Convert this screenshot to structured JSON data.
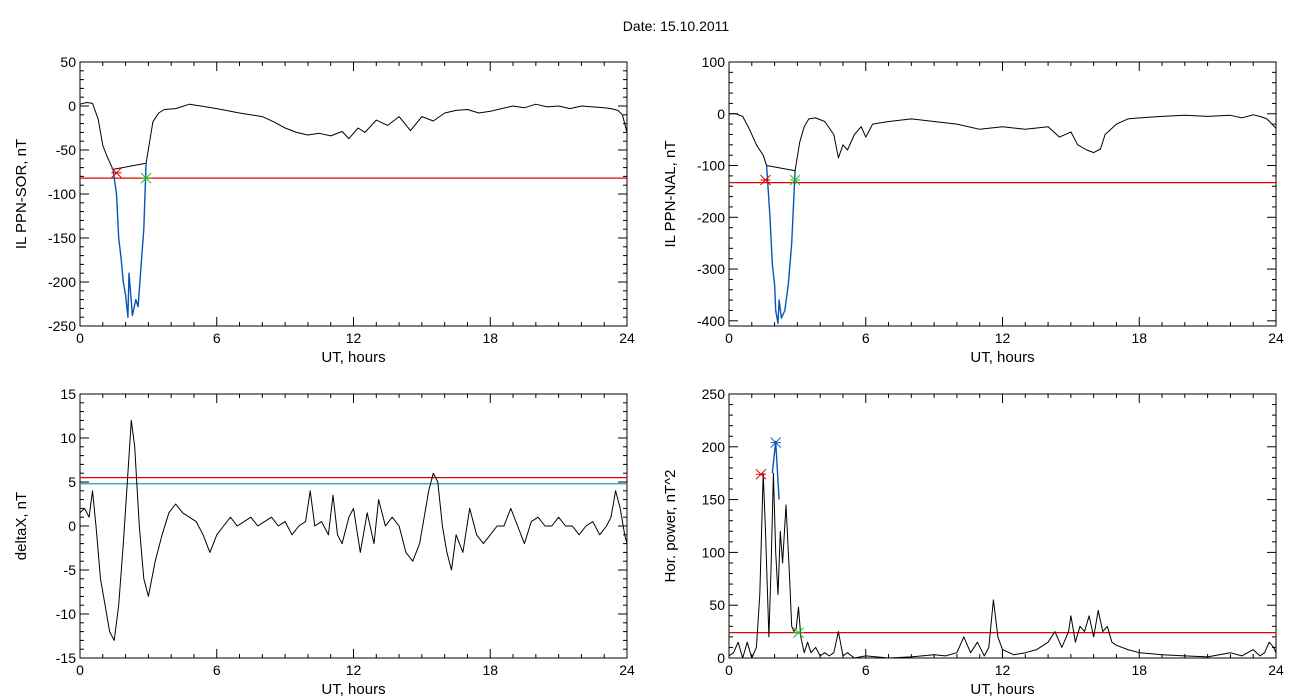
{
  "header": {
    "date_label": "Date:  15.10.2011"
  },
  "colors": {
    "red": "#e60000",
    "blue": "#0a55b4",
    "green": "#22bb22",
    "black": "#000000",
    "teal": "#2a9a9a"
  },
  "chart_data": [
    {
      "id": "p1",
      "type": "line",
      "xlabel": "UT, hours",
      "ylabel": "IL PPN-SOR, nT",
      "xlim": [
        0,
        24
      ],
      "ylim": [
        -250,
        50
      ],
      "xticks": [
        0,
        6,
        12,
        18,
        24
      ],
      "yticks": [
        -250,
        -200,
        -150,
        -100,
        -50,
        0,
        50
      ],
      "grid": false,
      "series": [
        {
          "color": "#000000",
          "x": [
            0,
            0.3,
            0.55,
            0.8,
            1.0,
            1.2,
            1.45,
            2.9,
            3.2,
            3.45,
            3.7,
            4.2,
            4.8,
            5.3,
            6.0,
            7.0,
            8.0,
            8.5,
            9.0,
            9.5,
            10.0,
            10.5,
            11.0,
            11.5,
            11.8,
            12.2,
            12.5,
            13.0,
            13.5,
            14.0,
            14.5,
            15.0,
            15.5,
            16.0,
            16.5,
            17.0,
            17.5,
            18.0,
            18.5,
            19.0,
            19.5,
            20.0,
            20.5,
            21.0,
            21.5,
            22.0,
            22.5,
            23.0,
            23.3,
            23.6,
            23.8,
            24.0
          ],
          "y": [
            2,
            4,
            3,
            -15,
            -45,
            -58,
            -72,
            -65,
            -18,
            -8,
            -4,
            -3,
            2,
            0,
            -3,
            -8,
            -12,
            -18,
            -25,
            -30,
            -33,
            -31,
            -34,
            -29,
            -37,
            -25,
            -30,
            -16,
            -22,
            -12,
            -28,
            -12,
            -17,
            -8,
            -5,
            -4,
            -8,
            -6,
            -3,
            0,
            -2,
            2,
            -1,
            0,
            -3,
            0,
            -1,
            -2,
            -3,
            -5,
            -10,
            -30
          ]
        },
        {
          "color": "#0a55b4",
          "x": [
            1.45,
            1.6,
            1.7,
            1.8,
            1.9,
            2.0,
            2.1,
            2.15,
            2.3,
            2.45,
            2.55,
            2.7,
            2.8,
            2.9
          ],
          "y": [
            -72,
            -100,
            -150,
            -172,
            -200,
            -215,
            -240,
            -190,
            -238,
            -220,
            -228,
            -175,
            -140,
            -65
          ]
        }
      ],
      "hlines": [
        {
          "y": -82,
          "color": "#e60000"
        }
      ],
      "markers": [
        {
          "x": 1.6,
          "y": -76,
          "color": "#e60000"
        },
        {
          "x": 2.9,
          "y": -82,
          "color": "#22bb22"
        }
      ]
    },
    {
      "id": "p2",
      "type": "line",
      "xlabel": "UT, hours",
      "ylabel": "IL PPN-NAL, nT",
      "xlim": [
        0,
        24
      ],
      "ylim": [
        -410,
        100
      ],
      "xticks": [
        0,
        6,
        12,
        18,
        24
      ],
      "yticks": [
        -400,
        -300,
        -200,
        -100,
        0,
        100
      ],
      "grid": false,
      "series": [
        {
          "color": "#000000",
          "x": [
            0,
            0.3,
            0.6,
            0.9,
            1.2,
            1.5,
            1.65,
            2.9,
            3.1,
            3.3,
            3.5,
            3.8,
            4.2,
            4.6,
            4.8,
            5.0,
            5.2,
            5.5,
            5.8,
            6.0,
            6.3,
            7.0,
            8.0,
            9.0,
            10.0,
            11.0,
            12.0,
            13.0,
            14.0,
            14.5,
            15.0,
            15.3,
            15.7,
            16.0,
            16.3,
            16.5,
            17.0,
            17.5,
            18.0,
            19.0,
            20.0,
            21.0,
            22.0,
            22.5,
            23.0,
            23.3,
            23.6,
            24.0
          ],
          "y": [
            0,
            0,
            -5,
            -30,
            -60,
            -80,
            -100,
            -110,
            -55,
            -25,
            -10,
            -8,
            -15,
            -40,
            -85,
            -60,
            -70,
            -40,
            -25,
            -45,
            -20,
            -15,
            -10,
            -15,
            -20,
            -30,
            -25,
            -30,
            -25,
            -45,
            -35,
            -60,
            -70,
            -75,
            -68,
            -40,
            -20,
            -10,
            -8,
            -5,
            -3,
            -5,
            -3,
            -8,
            -2,
            -5,
            -10,
            -28
          ]
        },
        {
          "color": "#0a55b4",
          "x": [
            1.65,
            1.8,
            1.9,
            2.0,
            2.05,
            2.15,
            2.2,
            2.3,
            2.45,
            2.6,
            2.75,
            2.9
          ],
          "y": [
            -100,
            -200,
            -290,
            -330,
            -380,
            -405,
            -360,
            -395,
            -380,
            -330,
            -250,
            -110
          ]
        }
      ],
      "hlines": [
        {
          "y": -133,
          "color": "#e60000"
        }
      ],
      "markers": [
        {
          "x": 1.6,
          "y": -128,
          "color": "#e60000"
        },
        {
          "x": 2.9,
          "y": -128,
          "color": "#22bb22"
        }
      ]
    },
    {
      "id": "p3",
      "type": "line",
      "xlabel": "UT, hours",
      "ylabel": "deltaX, nT",
      "xlim": [
        0,
        24
      ],
      "ylim": [
        -15,
        15
      ],
      "xticks": [
        0,
        6,
        12,
        18,
        24
      ],
      "yticks": [
        -15,
        -10,
        -5,
        0,
        5,
        10,
        15
      ],
      "grid": false,
      "series": [
        {
          "color": "#000000",
          "x": [
            0,
            0.2,
            0.4,
            0.55,
            0.7,
            0.9,
            1.1,
            1.3,
            1.5,
            1.7,
            1.9,
            2.1,
            2.25,
            2.4,
            2.6,
            2.8,
            3.0,
            3.3,
            3.6,
            3.9,
            4.2,
            4.5,
            4.8,
            5.1,
            5.4,
            5.7,
            6.0,
            6.3,
            6.6,
            6.9,
            7.2,
            7.5,
            7.8,
            8.1,
            8.4,
            8.7,
            9.0,
            9.3,
            9.6,
            9.9,
            10.1,
            10.3,
            10.6,
            10.9,
            11.1,
            11.3,
            11.5,
            11.8,
            12.0,
            12.3,
            12.6,
            12.9,
            13.1,
            13.4,
            13.7,
            14.0,
            14.3,
            14.6,
            14.9,
            15.1,
            15.3,
            15.5,
            15.7,
            15.9,
            16.1,
            16.3,
            16.5,
            16.8,
            17.1,
            17.4,
            17.7,
            18.0,
            18.3,
            18.6,
            18.9,
            19.2,
            19.5,
            19.8,
            20.1,
            20.4,
            20.7,
            21.0,
            21.3,
            21.6,
            21.9,
            22.2,
            22.5,
            22.8,
            23.1,
            23.3,
            23.5,
            23.7,
            23.9,
            24.0
          ],
          "y": [
            1.5,
            2,
            1,
            4,
            0,
            -6,
            -9,
            -12,
            -13,
            -9,
            -2,
            6,
            12,
            9,
            0,
            -6,
            -8,
            -4,
            -1,
            1.5,
            2.5,
            1.5,
            1,
            0.5,
            -1,
            -3,
            -1,
            0,
            1,
            0,
            0.5,
            1,
            0,
            0.5,
            1,
            0,
            0.5,
            -1,
            0,
            0.5,
            4,
            0,
            0.5,
            -1,
            3.5,
            -1,
            -2,
            1,
            2,
            -3,
            1.5,
            -2,
            3,
            0,
            1,
            0,
            -3,
            -4,
            -2,
            1,
            4,
            6,
            5,
            0,
            -3,
            -5,
            -1,
            -3,
            2,
            -1,
            -2,
            -1,
            0,
            0,
            2,
            0,
            -2,
            0.5,
            1,
            0,
            0,
            1,
            0,
            0,
            -1,
            0,
            0.5,
            -1,
            0,
            1,
            4,
            2,
            -1,
            -2
          ]
        }
      ],
      "hlines": [
        {
          "y": 5.5,
          "color": "#e60000"
        },
        {
          "y": 4.8,
          "color": "#2a9a9a"
        }
      ],
      "markers": []
    },
    {
      "id": "p4",
      "type": "line",
      "xlabel": "UT, hours",
      "ylabel": "Hor. power, nT^2",
      "xlim": [
        0,
        24
      ],
      "ylim": [
        0,
        250
      ],
      "xticks": [
        0,
        6,
        12,
        18,
        24
      ],
      "yticks": [
        0,
        50,
        100,
        150,
        200,
        250
      ],
      "grid": false,
      "series": [
        {
          "color": "#000000",
          "x": [
            0,
            0.2,
            0.4,
            0.6,
            0.8,
            1.0,
            1.2,
            1.35,
            1.5,
            1.6,
            1.75,
            1.85,
            1.95,
            2.05,
            2.15,
            2.25,
            2.35,
            2.5,
            2.65,
            2.75,
            2.85,
            2.95,
            3.05,
            3.15,
            3.3,
            3.45,
            3.6,
            3.8,
            4.0,
            4.2,
            4.4,
            4.6,
            4.8,
            5.0,
            5.2,
            5.5,
            6.0,
            7.0,
            8.0,
            9.0,
            9.5,
            10.0,
            10.3,
            10.6,
            10.9,
            11.2,
            11.4,
            11.6,
            11.8,
            12.0,
            12.5,
            13.0,
            13.5,
            14.0,
            14.3,
            14.6,
            14.9,
            15.0,
            15.2,
            15.4,
            15.6,
            15.8,
            16.0,
            16.2,
            16.4,
            16.6,
            16.8,
            17.0,
            17.5,
            18.0,
            19.0,
            20.0,
            21.0,
            22.0,
            22.5,
            23.0,
            23.3,
            23.5,
            23.7,
            23.9,
            24.0
          ],
          "y": [
            2,
            5,
            15,
            0,
            15,
            0,
            10,
            60,
            175,
            120,
            20,
            90,
            175,
            100,
            60,
            120,
            90,
            145,
            80,
            30,
            25,
            28,
            48,
            20,
            5,
            15,
            5,
            10,
            2,
            5,
            2,
            5,
            25,
            2,
            5,
            0,
            2,
            0,
            1,
            3,
            2,
            5,
            20,
            5,
            15,
            2,
            10,
            55,
            20,
            8,
            3,
            5,
            8,
            15,
            25,
            10,
            25,
            40,
            15,
            30,
            25,
            40,
            20,
            45,
            25,
            30,
            15,
            12,
            8,
            5,
            3,
            2,
            1,
            5,
            2,
            8,
            2,
            5,
            15,
            10,
            5
          ]
        },
        {
          "color": "#0a55b4",
          "x": [
            1.9,
            2.05,
            2.2
          ],
          "y": [
            175,
            205,
            150
          ]
        }
      ],
      "hlines": [
        {
          "y": 24,
          "color": "#e60000"
        }
      ],
      "markers": [
        {
          "x": 1.4,
          "y": 174,
          "color": "#e60000"
        },
        {
          "x": 2.05,
          "y": 204,
          "color": "#0a55b4"
        },
        {
          "x": 3.05,
          "y": 24,
          "color": "#22bb22"
        }
      ]
    }
  ]
}
